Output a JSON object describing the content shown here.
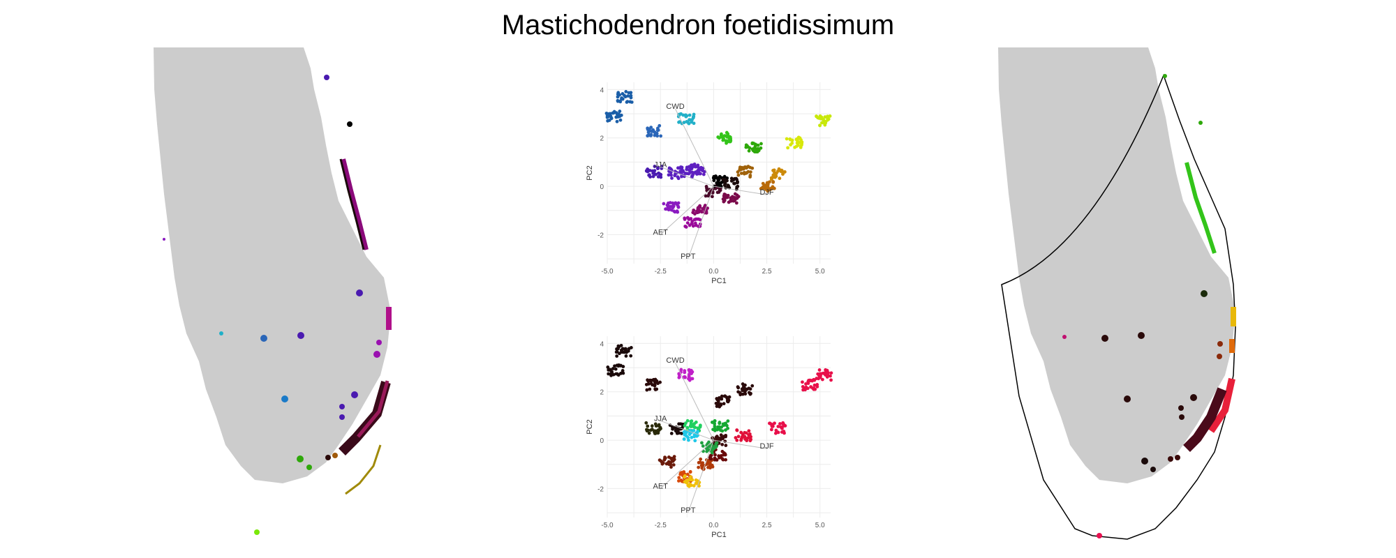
{
  "figure": {
    "title": "Mastichodendron foetidissimum"
  },
  "maps": {
    "left": {
      "land_color": "#cccccc"
    },
    "right": {
      "land_color": "#cccccc"
    }
  },
  "chart_data": [
    {
      "type": "scatter",
      "panel": "top",
      "xlabel": "PC1",
      "ylabel": "PC2",
      "xlim": [
        -5.0,
        5.5
      ],
      "ylim": [
        -3.2,
        4.3
      ],
      "xticks": [
        "-5.0",
        "-2.5",
        "0.0",
        "2.5",
        "5.0"
      ],
      "yticks": [
        "4",
        "2",
        "0",
        "-2"
      ],
      "grid": true,
      "loadings": [
        {
          "label": "CWD",
          "x": -1.8,
          "y": 3.2
        },
        {
          "label": "JJA",
          "x": -2.5,
          "y": 0.8
        },
        {
          "label": "DJF",
          "x": 2.5,
          "y": -0.35
        },
        {
          "label": "AET",
          "x": -2.5,
          "y": -2.0
        },
        {
          "label": "PPT",
          "x": -1.2,
          "y": -3.0
        }
      ],
      "clusters": [
        {
          "x": -4.2,
          "y": 3.7,
          "color": "#1a5ea8"
        },
        {
          "x": -4.7,
          "y": 2.9,
          "color": "#1a5ea8"
        },
        {
          "x": -2.8,
          "y": 2.3,
          "color": "#2a66b8"
        },
        {
          "x": -1.3,
          "y": 2.8,
          "color": "#22b0c8"
        },
        {
          "x": -2.8,
          "y": 0.6,
          "color": "#4a1ab0"
        },
        {
          "x": -1.8,
          "y": 0.55,
          "color": "#5a20c0"
        },
        {
          "x": -1.2,
          "y": 0.6,
          "color": "#5a20c0"
        },
        {
          "x": -0.8,
          "y": 0.7,
          "color": "#6020c0"
        },
        {
          "x": -2.0,
          "y": -0.9,
          "color": "#8a1ac0"
        },
        {
          "x": -1.0,
          "y": -1.5,
          "color": "#9a0a9a"
        },
        {
          "x": -0.6,
          "y": -1.0,
          "color": "#8a0a6a"
        },
        {
          "x": 0.0,
          "y": -0.2,
          "color": "#4a0a2a"
        },
        {
          "x": 0.3,
          "y": 0.2,
          "color": "#000000"
        },
        {
          "x": 0.8,
          "y": 0.1,
          "color": "#1a0a0a"
        },
        {
          "x": 0.8,
          "y": -0.5,
          "color": "#7a0a4a"
        },
        {
          "x": 0.5,
          "y": 2.0,
          "color": "#33c41a"
        },
        {
          "x": 1.9,
          "y": 1.6,
          "color": "#2ea80a"
        },
        {
          "x": 1.5,
          "y": 0.6,
          "color": "#a0620a"
        },
        {
          "x": 3.0,
          "y": 0.5,
          "color": "#cc8a0a"
        },
        {
          "x": 2.6,
          "y": 0.0,
          "color": "#b86a0a"
        },
        {
          "x": 3.8,
          "y": 1.8,
          "color": "#d8e80a"
        },
        {
          "x": 5.1,
          "y": 2.7,
          "color": "#c8e80a"
        }
      ]
    },
    {
      "type": "scatter",
      "panel": "bottom",
      "xlabel": "PC1",
      "ylabel": "PC2",
      "xlim": [
        -5.0,
        5.5
      ],
      "ylim": [
        -3.2,
        4.3
      ],
      "xticks": [
        "-5.0",
        "-2.5",
        "0.0",
        "2.5",
        "5.0"
      ],
      "yticks": [
        "4",
        "2",
        "0",
        "-2"
      ],
      "grid": true,
      "loadings": [
        {
          "label": "CWD",
          "x": -1.8,
          "y": 3.2
        },
        {
          "label": "JJA",
          "x": -2.5,
          "y": 0.8
        },
        {
          "label": "DJF",
          "x": 2.5,
          "y": -0.35
        },
        {
          "label": "AET",
          "x": -2.5,
          "y": -2.0
        },
        {
          "label": "PPT",
          "x": -1.2,
          "y": -3.0
        }
      ],
      "clusters": [
        {
          "x": -4.2,
          "y": 3.7,
          "color": "#1a0a0a"
        },
        {
          "x": -4.6,
          "y": 2.9,
          "color": "#1a0a0a"
        },
        {
          "x": -2.8,
          "y": 2.3,
          "color": "#2a0a0a"
        },
        {
          "x": -1.3,
          "y": 2.7,
          "color": "#c020c8"
        },
        {
          "x": -2.8,
          "y": 0.5,
          "color": "#2a2a0a"
        },
        {
          "x": -1.8,
          "y": 0.5,
          "color": "#1a0a0a"
        },
        {
          "x": -1.0,
          "y": 0.6,
          "color": "#20d060"
        },
        {
          "x": -1.1,
          "y": 0.2,
          "color": "#20c8e8"
        },
        {
          "x": 0.3,
          "y": 0.6,
          "color": "#16a832"
        },
        {
          "x": 0.4,
          "y": 1.6,
          "color": "#2a0a0a"
        },
        {
          "x": 1.5,
          "y": 2.1,
          "color": "#2a0a0a"
        },
        {
          "x": 0.3,
          "y": 0.0,
          "color": "#3a0a0a"
        },
        {
          "x": 1.4,
          "y": 0.2,
          "color": "#e0103a"
        },
        {
          "x": 3.0,
          "y": 0.5,
          "color": "#e8104a"
        },
        {
          "x": 4.5,
          "y": 2.3,
          "color": "#e8104a"
        },
        {
          "x": 5.2,
          "y": 2.7,
          "color": "#e8104a"
        },
        {
          "x": -2.2,
          "y": -0.9,
          "color": "#6a1a0a"
        },
        {
          "x": -1.4,
          "y": -1.5,
          "color": "#d84a0a"
        },
        {
          "x": -1.0,
          "y": -1.7,
          "color": "#f0c00a"
        },
        {
          "x": -0.4,
          "y": -1.0,
          "color": "#b03a0a"
        },
        {
          "x": 0.2,
          "y": -0.6,
          "color": "#6a0a0a"
        },
        {
          "x": -0.2,
          "y": -0.3,
          "color": "#20a040"
        }
      ]
    }
  ]
}
